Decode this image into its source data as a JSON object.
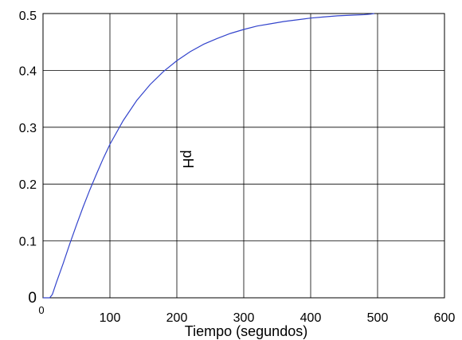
{
  "chart_data": {
    "type": "line",
    "title": "",
    "xlabel": "Tiempo (segundos)",
    "ylabel": "pH",
    "xlim": [
      0,
      600
    ],
    "ylim": [
      0,
      0.5
    ],
    "grid": true,
    "x_ticks": [
      0,
      100,
      200,
      300,
      400,
      500,
      600
    ],
    "x_tick_labels": [
      "0",
      "100",
      "200",
      "300",
      "400",
      "500",
      "600"
    ],
    "y_ticks": [
      0,
      0.1,
      0.2,
      0.3,
      0.4,
      0.5
    ],
    "y_tick_labels": [
      "0",
      "0.1",
      "0.2",
      "0.3",
      "0.4",
      "0.5"
    ],
    "line_color": "#3344cc",
    "series": [
      {
        "x": [
          0,
          10,
          14,
          20,
          30,
          40,
          50,
          60,
          70,
          80,
          90,
          100,
          120,
          140,
          160,
          180,
          200,
          220,
          240,
          260,
          280,
          300,
          320,
          340,
          360,
          380,
          400,
          420,
          440,
          460,
          480,
          490,
          495
        ],
        "y": [
          0,
          0,
          0.006,
          0.027,
          0.06,
          0.095,
          0.128,
          0.16,
          0.19,
          0.218,
          0.245,
          0.27,
          0.312,
          0.347,
          0.375,
          0.398,
          0.417,
          0.433,
          0.446,
          0.456,
          0.465,
          0.472,
          0.478,
          0.482,
          0.486,
          0.489,
          0.492,
          0.494,
          0.496,
          0.497,
          0.498,
          0.499,
          0.5
        ]
      }
    ]
  }
}
